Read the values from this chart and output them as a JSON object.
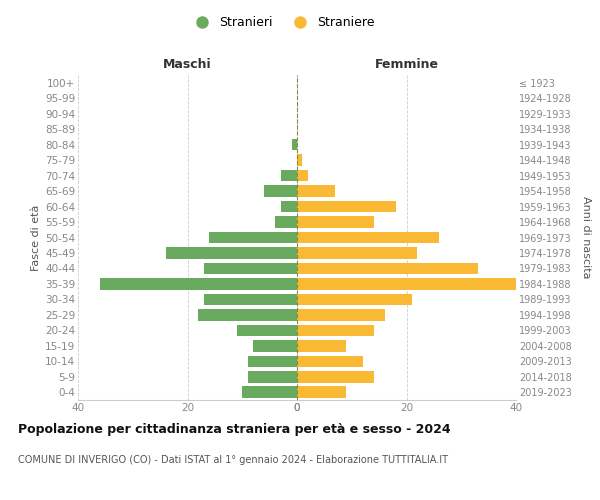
{
  "age_groups": [
    "100+",
    "95-99",
    "90-94",
    "85-89",
    "80-84",
    "75-79",
    "70-74",
    "65-69",
    "60-64",
    "55-59",
    "50-54",
    "45-49",
    "40-44",
    "35-39",
    "30-34",
    "25-29",
    "20-24",
    "15-19",
    "10-14",
    "5-9",
    "0-4"
  ],
  "birth_years": [
    "≤ 1923",
    "1924-1928",
    "1929-1933",
    "1934-1938",
    "1939-1943",
    "1944-1948",
    "1949-1953",
    "1954-1958",
    "1959-1963",
    "1964-1968",
    "1969-1973",
    "1974-1978",
    "1979-1983",
    "1984-1988",
    "1989-1993",
    "1994-1998",
    "1999-2003",
    "2004-2008",
    "2009-2013",
    "2014-2018",
    "2019-2023"
  ],
  "males": [
    0,
    0,
    0,
    0,
    1,
    0,
    3,
    6,
    3,
    4,
    16,
    24,
    17,
    36,
    17,
    18,
    11,
    8,
    9,
    9,
    10
  ],
  "females": [
    0,
    0,
    0,
    0,
    0,
    1,
    2,
    7,
    18,
    14,
    26,
    22,
    33,
    40,
    21,
    16,
    14,
    9,
    12,
    14,
    9
  ],
  "male_color": "#6aaa5e",
  "female_color": "#f9b934",
  "title": "Popolazione per cittadinanza straniera per età e sesso - 2024",
  "subtitle": "COMUNE DI INVERIGO (CO) - Dati ISTAT al 1° gennaio 2024 - Elaborazione TUTTITALIA.IT",
  "legend_male": "Stranieri",
  "legend_female": "Straniere",
  "xlabel_left": "Maschi",
  "xlabel_right": "Femmine",
  "ylabel_left": "Fasce di età",
  "ylabel_right": "Anni di nascita",
  "xlim": 40,
  "bg_color": "#ffffff",
  "grid_color": "#cccccc",
  "axis_label_color": "#555555",
  "tick_color": "#888888"
}
